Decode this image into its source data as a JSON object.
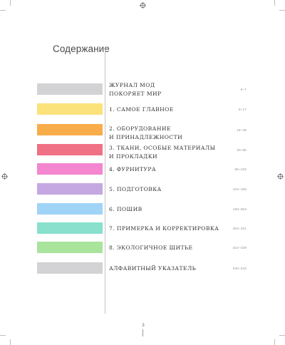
{
  "title": "Содержание",
  "page_number": "3",
  "entries": [
    {
      "label": "ЖУРНАЛ МОД\nПОКОРЯЕТ МИР",
      "pages": "6–7",
      "color": "#d3d3d6"
    },
    {
      "label": "1. САМОЕ ГЛАВНОЕ",
      "pages": "8–17",
      "color": "#fbe27a"
    },
    {
      "label": "2. ОБОРУДОВАНИЕ\nИ ПРИНАДЛЕЖНОСТИ",
      "pages": "18–39",
      "color": "#f8ad4a"
    },
    {
      "label": "3. ТКАНИ, ОСОБЫЕ МАТЕРИАЛЫ\nИ ПРОКЛАДКИ",
      "pages": "40–85",
      "color": "#f07085"
    },
    {
      "label": "4. ФУРНИТУРА",
      "pages": "86–103",
      "color": "#f386cf"
    },
    {
      "label": "5. ПОДГОТОВКА",
      "pages": "104–159",
      "color": "#c5a7e2"
    },
    {
      "label": "6. ПОШИВ",
      "pages": "160–303",
      "color": "#9fd4f7"
    },
    {
      "label": "7. ПРИМЕРКА И КОРРЕКТИРОВКА",
      "pages": "304–321",
      "color": "#88e0cd"
    },
    {
      "label": "8. ЭКОЛОГИЧНОЕ ШИТЬЕ",
      "pages": "322–339",
      "color": "#a8e49c"
    },
    {
      "label": "АЛФАВИТНЫЙ УКАЗАТЕЛЬ",
      "pages": "340–343",
      "color": "#d3d3d6"
    }
  ]
}
